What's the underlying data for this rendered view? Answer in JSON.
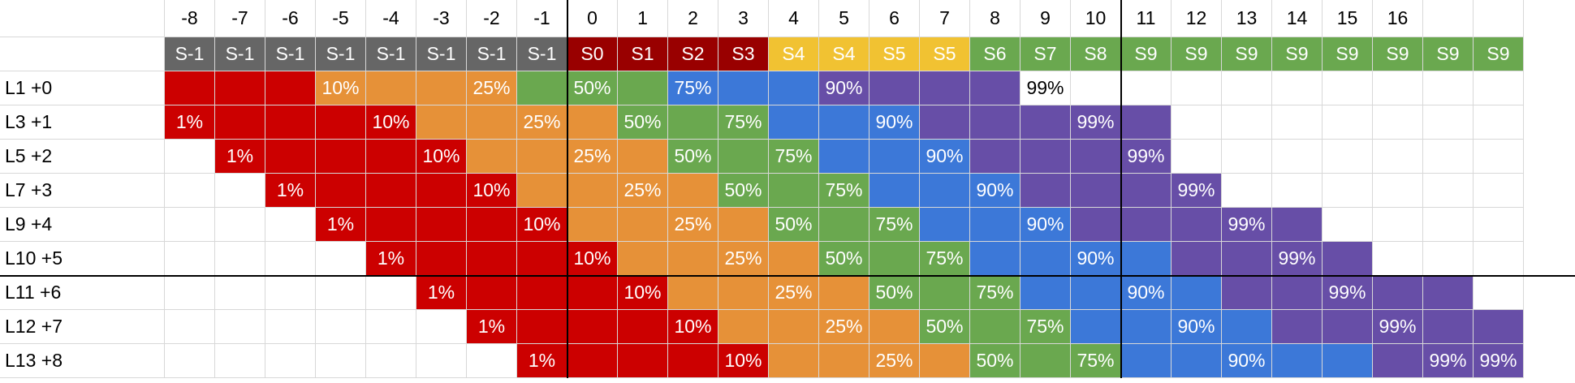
{
  "columns": [
    "-8",
    "-7",
    "-6",
    "-5",
    "-4",
    "-3",
    "-2",
    "-1",
    "0",
    "1",
    "2",
    "3",
    "4",
    "5",
    "6",
    "7",
    "8",
    "9",
    "10",
    "11",
    "12",
    "13",
    "14",
    "15",
    "16",
    "",
    ""
  ],
  "stages": [
    {
      "label": "S-1",
      "color": "#666666"
    },
    {
      "label": "S-1",
      "color": "#666666"
    },
    {
      "label": "S-1",
      "color": "#666666"
    },
    {
      "label": "S-1",
      "color": "#666666"
    },
    {
      "label": "S-1",
      "color": "#666666"
    },
    {
      "label": "S-1",
      "color": "#666666"
    },
    {
      "label": "S-1",
      "color": "#666666"
    },
    {
      "label": "S-1",
      "color": "#666666"
    },
    {
      "label": "S0",
      "color": "#990000"
    },
    {
      "label": "S1",
      "color": "#990000"
    },
    {
      "label": "S2",
      "color": "#990000"
    },
    {
      "label": "S3",
      "color": "#990000"
    },
    {
      "label": "S4",
      "color": "#f1c232"
    },
    {
      "label": "S4",
      "color": "#f1c232"
    },
    {
      "label": "S5",
      "color": "#f1c232"
    },
    {
      "label": "S5",
      "color": "#f1c232"
    },
    {
      "label": "S6",
      "color": "#6aa84f"
    },
    {
      "label": "S7",
      "color": "#6aa84f"
    },
    {
      "label": "S8",
      "color": "#6aa84f"
    },
    {
      "label": "S9",
      "color": "#6aa84f"
    },
    {
      "label": "S9",
      "color": "#6aa84f"
    },
    {
      "label": "S9",
      "color": "#6aa84f"
    },
    {
      "label": "S9",
      "color": "#6aa84f"
    },
    {
      "label": "S9",
      "color": "#6aa84f"
    },
    {
      "label": "S9",
      "color": "#6aa84f"
    },
    {
      "label": "S9",
      "color": "#6aa84f"
    },
    {
      "label": "S9",
      "color": "#6aa84f"
    }
  ],
  "legend_colors": {
    "r": "#cc0000",
    "o": "#e69138",
    "g": "#6aa84f",
    "b": "#3c78d8",
    "p": "#674ea7"
  },
  "rows": [
    {
      "label": "L1 +0",
      "start": 0,
      "pattern": "rrroooogggbbbpppp",
      "labels": {
        "3": "10%",
        "6": "25%",
        "8": "50%",
        "10": "75%",
        "13": "90%",
        "17": "99%"
      }
    },
    {
      "label": "L3 +1",
      "start": 0,
      "pattern": "rrrrroooogggbbbppppp",
      "labels": {
        "0": "1%",
        "4": "10%",
        "7": "25%",
        "9": "50%",
        "11": "75%",
        "14": "90%",
        "18": "99%"
      }
    },
    {
      "label": "L5 +2",
      "start": 1,
      "pattern": "rrrrroooogggbbbpppp",
      "labels": {
        "1": "1%",
        "5": "10%",
        "8": "25%",
        "10": "50%",
        "12": "75%",
        "15": "90%",
        "19": "99%"
      }
    },
    {
      "label": "L7 +3",
      "start": 2,
      "pattern": "rrrrroooogggbbbpppp",
      "labels": {
        "2": "1%",
        "6": "10%",
        "9": "25%",
        "11": "50%",
        "13": "75%",
        "16": "90%",
        "20": "99%"
      }
    },
    {
      "label": "L9 +4",
      "start": 3,
      "pattern": "rrrrroooogggbbbppppp",
      "labels": {
        "3": "1%",
        "7": "10%",
        "10": "25%",
        "12": "50%",
        "14": "75%",
        "17": "90%",
        "21": "99%"
      }
    },
    {
      "label": "L10 +5",
      "start": 4,
      "pattern": "rrrrroooogggbbbbpppp",
      "labels": {
        "4": "1%",
        "8": "10%",
        "11": "25%",
        "13": "50%",
        "15": "75%",
        "18": "90%",
        "22": "99%"
      }
    },
    {
      "label": "L11 +6",
      "start": 5,
      "pattern": "rrrrroooogggbbbbppppp",
      "labels": {
        "5": "1%",
        "9": "10%",
        "12": "25%",
        "14": "50%",
        "16": "75%",
        "19": "90%",
        "23": "99%"
      }
    },
    {
      "label": "L12 +7",
      "start": 6,
      "pattern": "rrrrroooogggbbbbppppp",
      "labels": {
        "6": "1%",
        "10": "10%",
        "13": "25%",
        "15": "50%",
        "17": "75%",
        "20": "90%",
        "24": "99%"
      }
    },
    {
      "label": "L13 +8",
      "start": 7,
      "pattern": "rrrrroooogggbbbbbppppp",
      "labels": {
        "7": "1%",
        "11": "10%",
        "14": "25%",
        "16": "50%",
        "18": "75%",
        "21": "90%",
        "25": "99%",
        "26": "99%"
      }
    }
  ]
}
